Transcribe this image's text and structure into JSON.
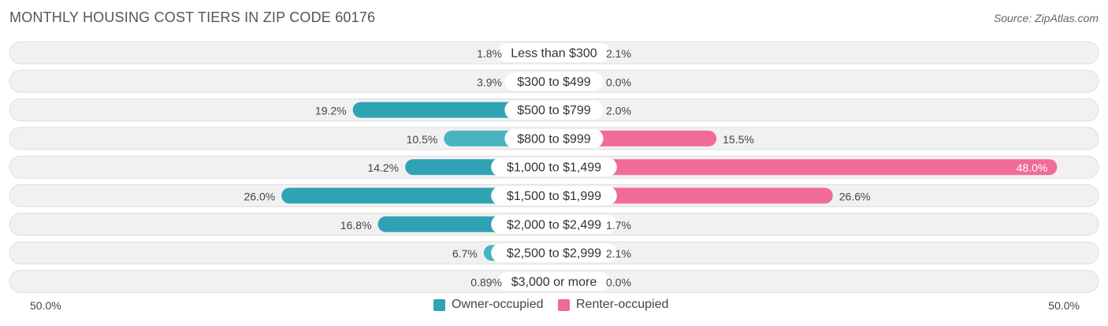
{
  "title": "MONTHLY HOUSING COST TIERS IN ZIP CODE 60176",
  "source": "Source: ZipAtlas.com",
  "colors": {
    "owner": "#4ab3c2",
    "owner_strong": "#2fa3b4",
    "renter": "#f5a3bf",
    "renter_strong": "#f06b95",
    "row_bg": "#f1f1f1",
    "row_border": "#dedede"
  },
  "legend": {
    "owner_label": "Owner-occupied",
    "renter_label": "Renter-occupied"
  },
  "axis": {
    "left_label": "50.0%",
    "right_label": "50.0%"
  },
  "chart_data": {
    "type": "bar",
    "orientation": "diverging-horizontal",
    "xlim": [
      0,
      50
    ],
    "categories": [
      "Less than $300",
      "$300 to $499",
      "$500 to $799",
      "$800 to $999",
      "$1,000 to $1,499",
      "$1,500 to $1,999",
      "$2,000 to $2,499",
      "$2,500 to $2,999",
      "$3,000 or more"
    ],
    "series": [
      {
        "name": "Owner-occupied",
        "values": [
          1.8,
          3.9,
          19.2,
          10.5,
          14.2,
          26.0,
          16.8,
          6.7,
          0.89
        ],
        "labels": [
          "1.8%",
          "3.9%",
          "19.2%",
          "10.5%",
          "14.2%",
          "26.0%",
          "16.8%",
          "6.7%",
          "0.89%"
        ]
      },
      {
        "name": "Renter-occupied",
        "values": [
          2.1,
          0.0,
          2.0,
          15.5,
          48.0,
          26.6,
          1.7,
          2.1,
          0.0
        ],
        "labels": [
          "2.1%",
          "0.0%",
          "2.0%",
          "15.5%",
          "48.0%",
          "26.6%",
          "1.7%",
          "2.1%",
          "0.0%"
        ]
      }
    ],
    "legend_position": "bottom-center"
  }
}
